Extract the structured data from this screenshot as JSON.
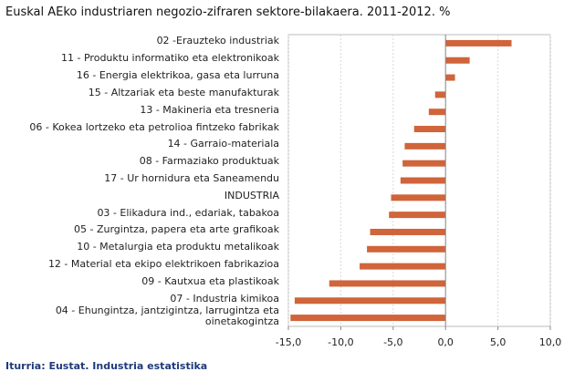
{
  "chart_data": {
    "type": "bar",
    "orientation": "horizontal",
    "title": "Euskal AEko industriaren negozio-zifraren sektore-bilakaera. 2011-2012. %",
    "source": "Iturria: Eustat. Industria estatistika",
    "categories": [
      "02 -Erauzteko industriak",
      "11 - Produktu informatiko eta elektronikoak",
      "16 - Energia elektrikoa, gasa eta lurruna",
      "15 - Altzariak eta beste manufakturak",
      "13 - Makineria eta tresneria",
      "06 - Kokea lortzeko eta petrolioa fintzeko fabrikak",
      "14 - Garraio-materiala",
      "08 - Farmaziako produktuak",
      "17 - Ur hornidura eta Saneamendu",
      "INDUSTRIA",
      "03 - Elikadura ind., edariak, tabakoa",
      "05 - Zurgintza, papera eta arte grafikoak",
      "10 - Metalurgia eta produktu metalikoak",
      "12 - Material eta ekipo elektrikoen fabrikazioa",
      "09 - Kautxua eta plastikoak",
      "07 - Industria kimikoa",
      "04 - Ehungintza, jantzigintza, larrugintza eta oinetakogintza"
    ],
    "values": [
      6.3,
      2.3,
      0.9,
      -1.0,
      -1.6,
      -3.0,
      -3.9,
      -4.1,
      -4.3,
      -5.2,
      -5.4,
      -7.2,
      -7.5,
      -8.2,
      -11.1,
      -14.4,
      -14.8
    ],
    "color": "#d0643a",
    "xlim": [
      -15,
      10
    ],
    "xticks": [
      {
        "value": -15,
        "label": "-15,0"
      },
      {
        "value": -10,
        "label": "-10,0"
      },
      {
        "value": -5,
        "label": "-5,0"
      },
      {
        "value": 0,
        "label": "0,0"
      },
      {
        "value": 5,
        "label": "5,0"
      },
      {
        "value": 10,
        "label": "10,0"
      }
    ],
    "grid": true
  }
}
